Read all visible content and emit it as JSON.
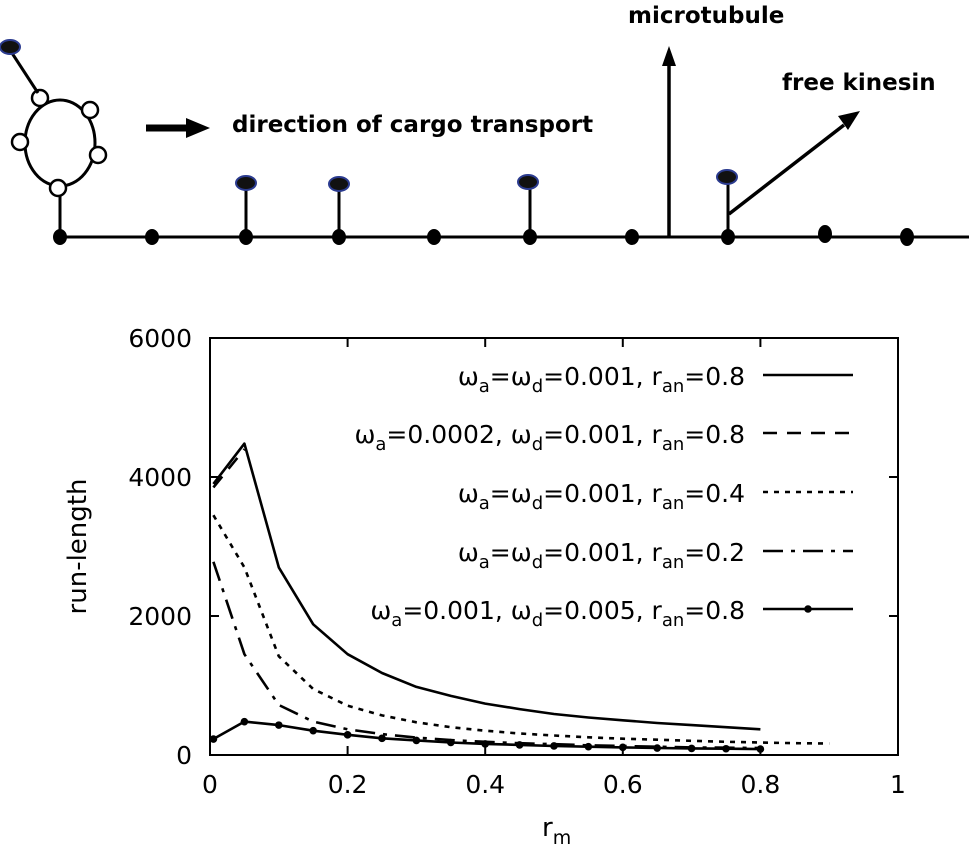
{
  "schematic": {
    "labels": {
      "direction": "direction of cargo transport",
      "microtubule": "microtubule",
      "free_kinesin": "free kinesin"
    }
  },
  "chart_data": {
    "type": "line",
    "title": "",
    "xlabel": "r",
    "xlabel_sub": "m",
    "ylabel": "run-length",
    "xlim": [
      0,
      1
    ],
    "ylim": [
      0,
      6000
    ],
    "x_ticks": [
      {
        "value": 0,
        "label": "0"
      },
      {
        "value": 0.2,
        "label": "0.2"
      },
      {
        "value": 0.4,
        "label": "0.4"
      },
      {
        "value": 0.6,
        "label": "0.6"
      },
      {
        "value": 0.8,
        "label": "0.8"
      },
      {
        "value": 1,
        "label": "1"
      }
    ],
    "y_ticks": [
      {
        "value": 0,
        "label": "0"
      },
      {
        "value": 2000,
        "label": "2000"
      },
      {
        "value": 4000,
        "label": "4000"
      },
      {
        "value": 6000,
        "label": "6000"
      }
    ],
    "grid": false,
    "legend_position": "top-right",
    "series": [
      {
        "name": "ωa=ωd=0.001, ran=0.8",
        "legend": [
          [
            "ω",
            ""
          ],
          [
            "a",
            "sub"
          ],
          [
            "=ω",
            ""
          ],
          [
            "d",
            "sub"
          ],
          [
            "=0.001, r",
            ""
          ],
          [
            "an",
            "sub"
          ],
          [
            "=0.8",
            ""
          ]
        ],
        "style": "solid",
        "points": [
          [
            0.005,
            3900
          ],
          [
            0.05,
            4480
          ],
          [
            0.1,
            2700
          ],
          [
            0.15,
            1880
          ],
          [
            0.2,
            1450
          ],
          [
            0.25,
            1180
          ],
          [
            0.3,
            980
          ],
          [
            0.35,
            850
          ],
          [
            0.4,
            740
          ],
          [
            0.45,
            660
          ],
          [
            0.5,
            590
          ],
          [
            0.55,
            540
          ],
          [
            0.6,
            500
          ],
          [
            0.65,
            460
          ],
          [
            0.7,
            430
          ],
          [
            0.75,
            400
          ],
          [
            0.8,
            370
          ]
        ]
      },
      {
        "name": "ωa=0.0002, ωd=0.001, ran=0.8",
        "legend": [
          [
            "ω",
            ""
          ],
          [
            "a",
            "sub"
          ],
          [
            "=0.0002, ω",
            ""
          ],
          [
            "d",
            "sub"
          ],
          [
            "=0.001, r",
            ""
          ],
          [
            "an",
            "sub"
          ],
          [
            "=0.8",
            ""
          ]
        ],
        "style": "dashed",
        "points": [
          [
            0.005,
            3850
          ],
          [
            0.05,
            4400
          ]
        ]
      },
      {
        "name": "ωa=ωd=0.001, ran=0.4",
        "legend": [
          [
            "ω",
            ""
          ],
          [
            "a",
            "sub"
          ],
          [
            "=ω",
            ""
          ],
          [
            "d",
            "sub"
          ],
          [
            "=0.001, r",
            ""
          ],
          [
            "an",
            "sub"
          ],
          [
            "=0.4",
            ""
          ]
        ],
        "style": "dotted",
        "points": [
          [
            0.005,
            3450
          ],
          [
            0.05,
            2700
          ],
          [
            0.1,
            1420
          ],
          [
            0.15,
            950
          ],
          [
            0.2,
            710
          ],
          [
            0.25,
            570
          ],
          [
            0.3,
            470
          ],
          [
            0.35,
            400
          ],
          [
            0.4,
            350
          ],
          [
            0.45,
            310
          ],
          [
            0.5,
            280
          ],
          [
            0.55,
            255
          ],
          [
            0.6,
            235
          ],
          [
            0.65,
            220
          ],
          [
            0.7,
            205
          ],
          [
            0.75,
            190
          ],
          [
            0.8,
            180
          ],
          [
            0.85,
            170
          ],
          [
            0.9,
            165
          ]
        ]
      },
      {
        "name": "ωa=ωd=0.001, ran=0.2",
        "legend": [
          [
            "ω",
            ""
          ],
          [
            "a",
            "sub"
          ],
          [
            "=ω",
            ""
          ],
          [
            "d",
            "sub"
          ],
          [
            "=0.001, r",
            ""
          ],
          [
            "an",
            "sub"
          ],
          [
            "=0.2",
            ""
          ]
        ],
        "style": "dashdot",
        "points": [
          [
            0.005,
            2780
          ],
          [
            0.05,
            1450
          ],
          [
            0.1,
            720
          ],
          [
            0.15,
            480
          ],
          [
            0.2,
            370
          ],
          [
            0.25,
            300
          ],
          [
            0.3,
            250
          ],
          [
            0.35,
            215
          ],
          [
            0.4,
            190
          ],
          [
            0.45,
            170
          ],
          [
            0.5,
            155
          ],
          [
            0.55,
            140
          ],
          [
            0.6,
            130
          ],
          [
            0.65,
            120
          ],
          [
            0.7,
            110
          ],
          [
            0.75,
            105
          ],
          [
            0.8,
            100
          ]
        ]
      },
      {
        "name": "ωa=0.001, ωd=0.005, ran=0.8",
        "legend": [
          [
            "ω",
            ""
          ],
          [
            "a",
            "sub"
          ],
          [
            "=0.001, ω",
            ""
          ],
          [
            "d",
            "sub"
          ],
          [
            "=0.005, r",
            ""
          ],
          [
            "an",
            "sub"
          ],
          [
            "=0.8",
            ""
          ]
        ],
        "style": "solid-markers",
        "points": [
          [
            0.005,
            230
          ],
          [
            0.05,
            480
          ],
          [
            0.1,
            430
          ],
          [
            0.15,
            350
          ],
          [
            0.2,
            290
          ],
          [
            0.25,
            240
          ],
          [
            0.3,
            210
          ],
          [
            0.35,
            180
          ],
          [
            0.4,
            160
          ],
          [
            0.45,
            145
          ],
          [
            0.5,
            130
          ],
          [
            0.55,
            120
          ],
          [
            0.6,
            110
          ],
          [
            0.65,
            100
          ],
          [
            0.7,
            95
          ],
          [
            0.75,
            90
          ],
          [
            0.8,
            85
          ]
        ]
      }
    ]
  }
}
